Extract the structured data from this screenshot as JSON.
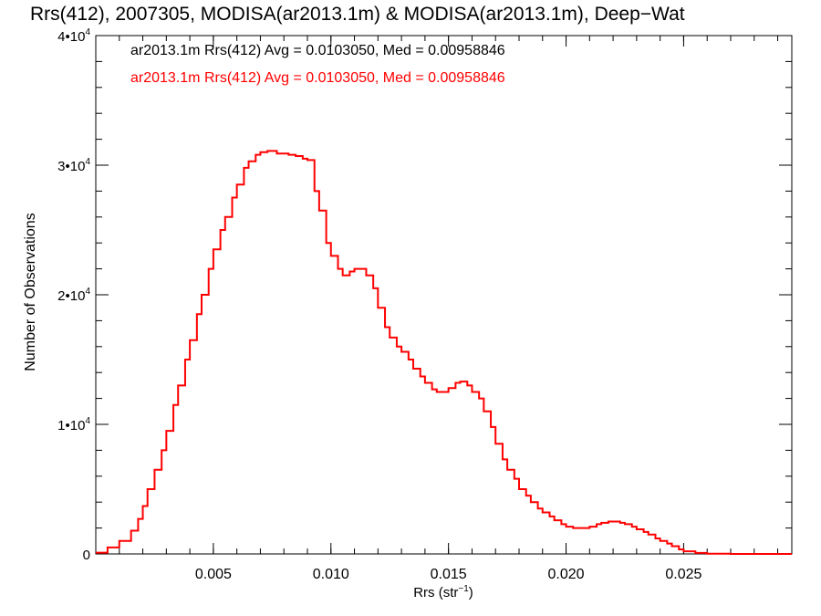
{
  "chart_data": {
    "type": "line",
    "title": "Rrs(412), 2007305, MODISA(ar2013.1m) & MODISA(ar2013.1m), Deep−Wat",
    "xlabel": "Rrs (str",
    "xlabel_sup": "−1",
    "xlabel_suffix": ")",
    "ylabel": "Number of Observations",
    "xlim": [
      0.0,
      0.0296
    ],
    "ylim": [
      0,
      40000
    ],
    "x_ticks": [
      {
        "value": 0.005,
        "label": "0.005"
      },
      {
        "value": 0.01,
        "label": "0.010"
      },
      {
        "value": 0.015,
        "label": "0.015"
      },
      {
        "value": 0.02,
        "label": "0.020"
      },
      {
        "value": 0.025,
        "label": "0.025"
      }
    ],
    "y_ticks": [
      {
        "value": 0,
        "base": "0",
        "exp": ""
      },
      {
        "value": 10000,
        "base": "1•10",
        "exp": "4"
      },
      {
        "value": 20000,
        "base": "2•10",
        "exp": "4"
      },
      {
        "value": 30000,
        "base": "3•10",
        "exp": "4"
      },
      {
        "value": 40000,
        "base": "4•10",
        "exp": "4"
      }
    ],
    "x_minor_step": 0.001,
    "y_minor_step": 2000,
    "grid": false,
    "legend": [
      {
        "text": "ar2013.1m Rrs(412) Avg = 0.0103050, Med = 0.00958846",
        "color": "#000000"
      },
      {
        "text": "ar2013.1m Rrs(412) Avg = 0.0103050, Med = 0.00958846",
        "color": "#ff0000"
      }
    ],
    "series": [
      {
        "color": "#ff0000",
        "x": [
          0.0,
          0.0005,
          0.001,
          0.0015,
          0.0018,
          0.002,
          0.0022,
          0.0025,
          0.0028,
          0.003,
          0.0033,
          0.0035,
          0.0038,
          0.004,
          0.0043,
          0.0045,
          0.0048,
          0.005,
          0.0053,
          0.0055,
          0.0058,
          0.006,
          0.0063,
          0.0065,
          0.0068,
          0.007,
          0.0073,
          0.0075,
          0.0077,
          0.008,
          0.0082,
          0.0085,
          0.0088,
          0.009,
          0.0093,
          0.0095,
          0.0098,
          0.01,
          0.0103,
          0.0105,
          0.0108,
          0.011,
          0.0113,
          0.0115,
          0.0118,
          0.012,
          0.0123,
          0.0125,
          0.0128,
          0.013,
          0.0133,
          0.0135,
          0.0138,
          0.014,
          0.0143,
          0.0145,
          0.0148,
          0.015,
          0.0153,
          0.0155,
          0.0158,
          0.016,
          0.0163,
          0.0165,
          0.0168,
          0.017,
          0.0173,
          0.0175,
          0.0178,
          0.018,
          0.0183,
          0.0185,
          0.0188,
          0.019,
          0.0193,
          0.0195,
          0.0198,
          0.02,
          0.0203,
          0.0205,
          0.0208,
          0.021,
          0.0213,
          0.0215,
          0.0218,
          0.022,
          0.0223,
          0.0225,
          0.0228,
          0.023,
          0.0233,
          0.0235,
          0.0238,
          0.024,
          0.0243,
          0.0245,
          0.0248,
          0.025,
          0.0255,
          0.026,
          0.027,
          0.028,
          0.0296
        ],
        "y": [
          100,
          500,
          1000,
          1800,
          2700,
          3700,
          5000,
          6500,
          8000,
          9500,
          11500,
          13000,
          15000,
          16500,
          18500,
          20000,
          22000,
          23500,
          25000,
          26000,
          27500,
          28500,
          29800,
          30300,
          30800,
          31000,
          31100,
          31100,
          30900,
          30900,
          30800,
          30700,
          30500,
          30400,
          28000,
          26500,
          24000,
          23000,
          22000,
          21500,
          21800,
          22000,
          22000,
          21500,
          20500,
          19000,
          17500,
          16700,
          16000,
          15600,
          15000,
          14300,
          13700,
          13200,
          12700,
          12500,
          12500,
          12800,
          13200,
          13300,
          13000,
          12500,
          12000,
          11000,
          9800,
          8500,
          7300,
          6500,
          5800,
          5000,
          4500,
          4000,
          3500,
          3200,
          2900,
          2600,
          2300,
          2100,
          2000,
          2000,
          2000,
          2100,
          2300,
          2400,
          2500,
          2500,
          2400,
          2300,
          2100,
          1900,
          1700,
          1500,
          1200,
          1000,
          800,
          600,
          350,
          200,
          80,
          20,
          0,
          0,
          0
        ]
      }
    ]
  }
}
